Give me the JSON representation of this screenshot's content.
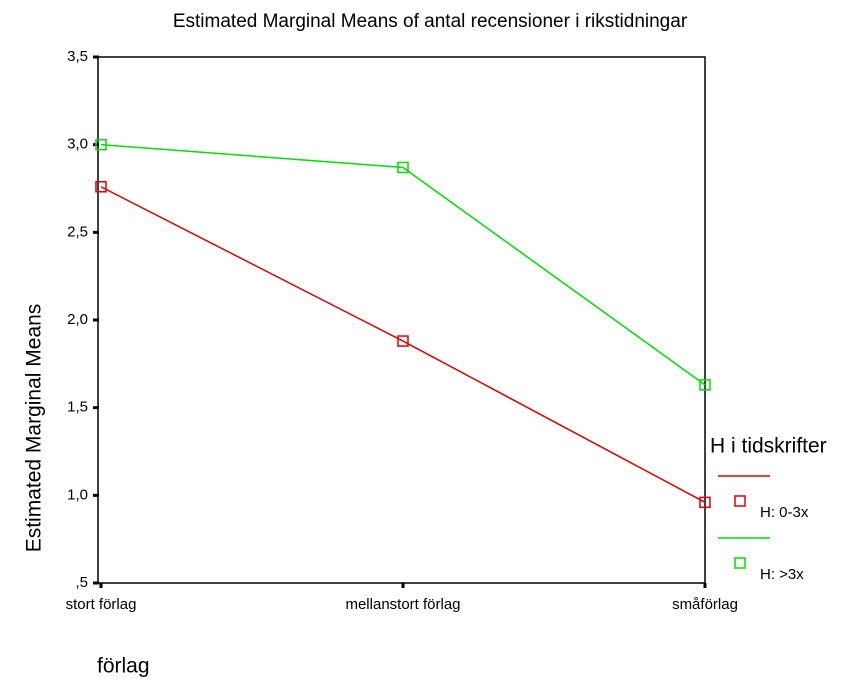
{
  "chart_data": {
    "type": "line",
    "title": "Estimated Marginal Means of antal recensioner i rikstidningar",
    "x_label": "förlag",
    "y_label": "Estimated Marginal Means",
    "categories": [
      "stort förlag",
      "mellanstort förlag",
      "småförlag"
    ],
    "series": [
      {
        "name": "H: 0-3x",
        "color": "#e00000",
        "values": [
          2.76,
          1.88,
          0.96
        ]
      },
      {
        "name": "H: >3x",
        "color": "#00e000",
        "values": [
          3.0,
          2.87,
          1.63
        ]
      }
    ],
    "legend_title": "H i tidskrifter",
    "legend": "right",
    "ylim": [
      0.5,
      3.5
    ],
    "yticks": [
      {
        "value": 0.5,
        "label": ",5"
      },
      {
        "value": 1.0,
        "label": "1,0"
      },
      {
        "value": 1.5,
        "label": "1,5"
      },
      {
        "value": 2.0,
        "label": "2,0"
      },
      {
        "value": 2.5,
        "label": "2,5"
      },
      {
        "value": 3.0,
        "label": "3,0"
      },
      {
        "value": 3.5,
        "label": "3,5"
      }
    ],
    "grid": false,
    "marker": "square"
  }
}
